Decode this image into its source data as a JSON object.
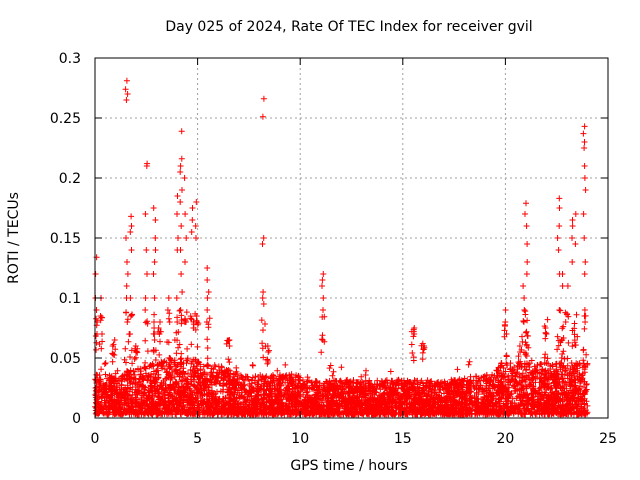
{
  "chart_data": {
    "type": "scatter",
    "title": "Day 025 of 2024, Rate Of TEC Index for receiver gvil",
    "xlabel": "GPS time / hours",
    "ylabel": "ROTI / TECUs",
    "xlim": [
      0,
      25
    ],
    "ylim": [
      0,
      0.3
    ],
    "grid": true,
    "marker": "+",
    "marker_color": "#ff0000",
    "xticks": [
      0,
      5,
      10,
      15,
      20,
      25
    ],
    "xtick_labels": [
      "0",
      "5",
      "10",
      "15",
      "20",
      "25"
    ],
    "yticks": [
      0,
      0.05,
      0.1,
      0.15,
      0.2,
      0.25,
      0.3
    ],
    "ytick_labels": [
      "0",
      "0.05",
      "0.1",
      "0.15",
      "0.2",
      "0.25",
      "0.3"
    ],
    "series": [
      {
        "name": "ROTI",
        "x_range": [
          0,
          24
        ],
        "baseline": {
          "description": "dense band of points across 0-24 h",
          "typical_min": 0.003,
          "typical_max": 0.05
        },
        "spikes": [
          {
            "x": 0.05,
            "y": [
              0.134,
              0.12,
              0.1,
              0.09,
              0.08,
              0.07
            ]
          },
          {
            "x": 0.3,
            "y": [
              0.1,
              0.085,
              0.07
            ]
          },
          {
            "x": 0.9,
            "y": [
              0.065,
              0.06
            ]
          },
          {
            "x": 1.55,
            "y": [
              0.281,
              0.274,
              0.27,
              0.265,
              0.15,
              0.13,
              0.12,
              0.11,
              0.1,
              0.08
            ]
          },
          {
            "x": 1.75,
            "y": [
              0.168,
              0.16,
              0.155,
              0.14,
              0.1,
              0.085,
              0.07
            ]
          },
          {
            "x": 2.0,
            "y": [
              0.06,
              0.055
            ]
          },
          {
            "x": 2.5,
            "y": [
              0.212,
              0.21,
              0.17,
              0.14,
              0.12,
              0.1,
              0.09
            ]
          },
          {
            "x": 2.9,
            "y": [
              0.175,
              0.165,
              0.15,
              0.14,
              0.13,
              0.12,
              0.1,
              0.08,
              0.075,
              0.07,
              0.065
            ]
          },
          {
            "x": 3.15,
            "y": [
              0.08,
              0.075,
              0.07
            ]
          },
          {
            "x": 3.6,
            "y": [
              0.1,
              0.09,
              0.08
            ]
          },
          {
            "x": 4.0,
            "y": [
              0.185,
              0.17,
              0.15,
              0.14,
              0.1,
              0.08
            ]
          },
          {
            "x": 4.2,
            "y": [
              0.239,
              0.216,
              0.21,
              0.205,
              0.19,
              0.18,
              0.16,
              0.14,
              0.12,
              0.105,
              0.09
            ]
          },
          {
            "x": 4.4,
            "y": [
              0.2,
              0.17,
              0.15,
              0.13,
              0.08
            ]
          },
          {
            "x": 4.75,
            "y": [
              0.175,
              0.165,
              0.155,
              0.08,
              0.075
            ]
          },
          {
            "x": 4.95,
            "y": [
              0.18,
              0.16,
              0.15,
              0.085,
              0.08
            ]
          },
          {
            "x": 5.5,
            "y": [
              0.125,
              0.115,
              0.105,
              0.1,
              0.09,
              0.08
            ]
          },
          {
            "x": 6.5,
            "y": [
              0.065,
              0.06
            ]
          },
          {
            "x": 8.2,
            "y": [
              0.266,
              0.251,
              0.15,
              0.145,
              0.105,
              0.1,
              0.095
            ]
          },
          {
            "x": 8.4,
            "y": [
              0.06,
              0.055
            ]
          },
          {
            "x": 11.1,
            "y": [
              0.12,
              0.115,
              0.11,
              0.1,
              0.09,
              0.065
            ]
          },
          {
            "x": 15.5,
            "y": [
              0.075,
              0.072,
              0.07,
              0.068
            ]
          },
          {
            "x": 16.0,
            "y": [
              0.062,
              0.06
            ]
          },
          {
            "x": 20.0,
            "y": [
              0.09,
              0.08,
              0.07
            ]
          },
          {
            "x": 20.7,
            "y": [
              0.06,
              0.055
            ]
          },
          {
            "x": 20.9,
            "y": [
              0.11,
              0.1,
              0.09,
              0.08
            ]
          },
          {
            "x": 21.0,
            "y": [
              0.179,
              0.17,
              0.16,
              0.145
            ]
          },
          {
            "x": 21.1,
            "y": [
              0.13,
              0.12
            ]
          },
          {
            "x": 22.0,
            "y": [
              0.082,
              0.075,
              0.07
            ]
          },
          {
            "x": 22.6,
            "y": [
              0.183,
              0.175,
              0.16,
              0.15,
              0.14,
              0.12,
              0.09
            ]
          },
          {
            "x": 22.8,
            "y": [
              0.12,
              0.11,
              0.065
            ]
          },
          {
            "x": 23.0,
            "y": [
              0.11,
              0.08
            ]
          },
          {
            "x": 23.3,
            "y": [
              0.165,
              0.16,
              0.15,
              0.13
            ]
          },
          {
            "x": 23.45,
            "y": [
              0.17,
              0.145
            ]
          },
          {
            "x": 23.85,
            "y": [
              0.243,
              0.237,
              0.23,
              0.225,
              0.21,
              0.2,
              0.19,
              0.17,
              0.15,
              0.13,
              0.12,
              0.09,
              0.085,
              0.08
            ]
          }
        ]
      }
    ]
  }
}
